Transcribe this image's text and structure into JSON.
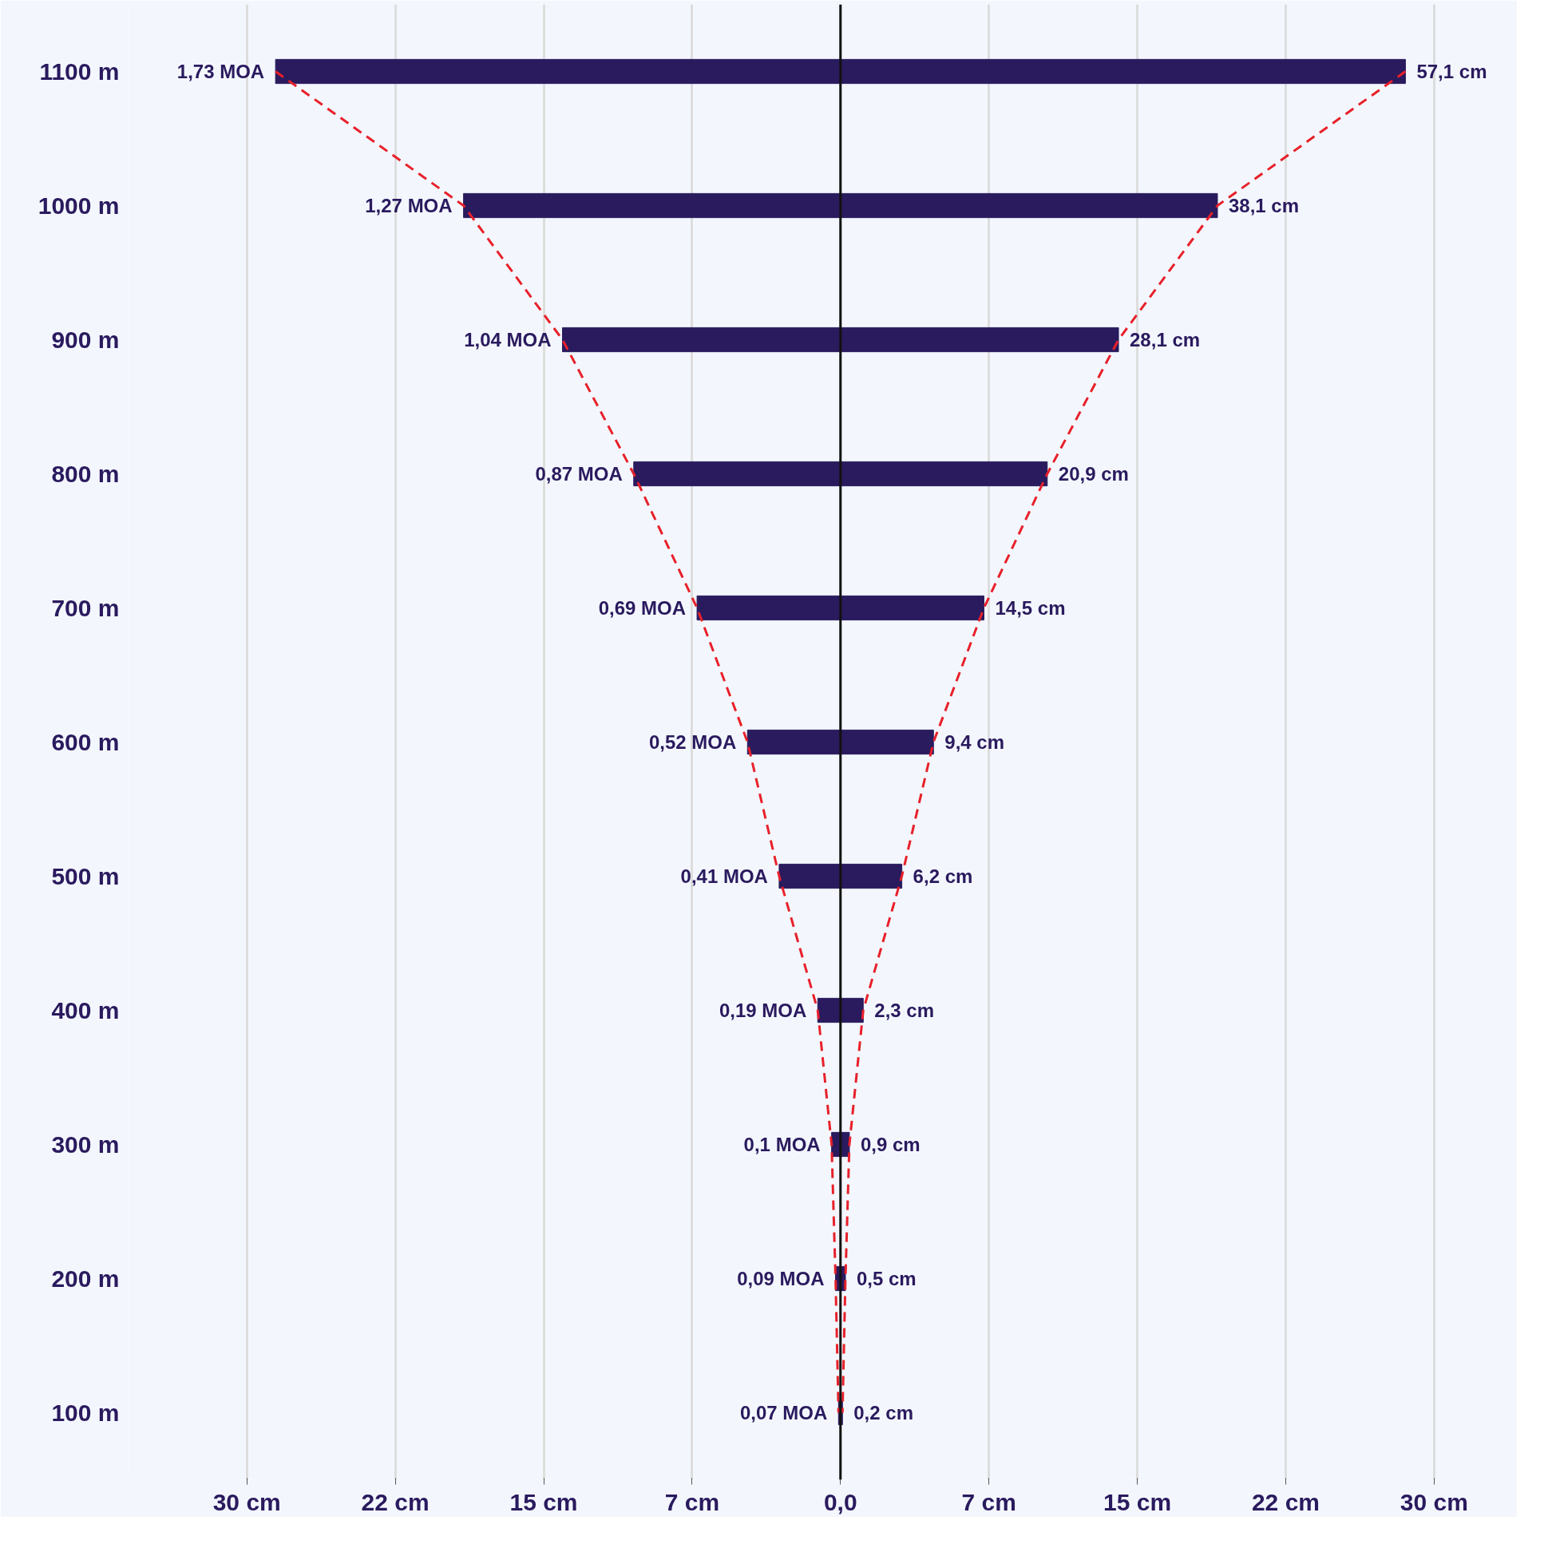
{
  "chart_data": {
    "type": "bar",
    "orientation": "horizontal",
    "categories": [
      "1100 m",
      "1000 m",
      "900 m",
      "800 m",
      "700 m",
      "600 m",
      "500 m",
      "400 m",
      "300 m",
      "200 m",
      "100 m"
    ],
    "series": [
      {
        "color": "#2a1a5e",
        "values": [
          57.1,
          38.1,
          28.1,
          20.9,
          14.5,
          9.4,
          6.2,
          2.3,
          0.9,
          0.5,
          0.2
        ],
        "base": [
          -28.55,
          -19.05,
          -14.05,
          -10.45,
          -7.25,
          -4.7,
          -3.1,
          -1.15,
          -0.45,
          -0.25,
          -0.1
        ],
        "value_labels": [
          "57,1 cm",
          "38,1 cm",
          "28,1 cm",
          "20,9 cm",
          "14,5 cm",
          "9,4 cm",
          "6,2 cm",
          "2,3 cm",
          "0,9 cm",
          "0,5 cm",
          "0,2 cm"
        ]
      },
      {
        "type": "line",
        "color": "#e8202a",
        "line_style": "dashed",
        "values": [
          -28.55,
          -19.05,
          -14.05,
          -10.45,
          -7.25,
          -4.7,
          -3.1,
          -1.15,
          -0.45,
          -0.25,
          -0.1
        ]
      },
      {
        "type": "line",
        "color": "#e8202a",
        "line_style": "dashed",
        "values": [
          28.55,
          19.05,
          14.05,
          10.45,
          7.25,
          4.7,
          3.1,
          1.15,
          0.45,
          0.25,
          0.1
        ]
      }
    ],
    "annotations": [
      {
        "text": "1,73 MOA",
        "x": -28.55,
        "y": "1100 m"
      },
      {
        "text": "1,27 MOA",
        "x": -19.05,
        "y": "1000 m"
      },
      {
        "text": "1,04 MOA",
        "x": -14.05,
        "y": "900 m"
      },
      {
        "text": "0,87 MOA",
        "x": -10.45,
        "y": "800 m"
      },
      {
        "text": "0,69 MOA",
        "x": -7.25,
        "y": "700 m"
      },
      {
        "text": "0,52 MOA",
        "x": -4.7,
        "y": "600 m"
      },
      {
        "text": "0,41 MOA",
        "x": -3.1,
        "y": "500 m"
      },
      {
        "text": "0,19 MOA",
        "x": -1.15,
        "y": "400 m"
      },
      {
        "text": "0,1 MOA",
        "x": -0.45,
        "y": "300 m"
      },
      {
        "text": "0,09 MOA",
        "x": -0.25,
        "y": "200 m"
      },
      {
        "text": "0,07 MOA",
        "x": -0.1,
        "y": "100 m"
      }
    ],
    "xlim": [
      -36,
      34
    ],
    "xticks": [
      {
        "value": -30,
        "label": "30 cm"
      },
      {
        "value": -22.5,
        "label": "22 cm"
      },
      {
        "value": -15,
        "label": "15 cm"
      },
      {
        "value": -7.5,
        "label": "7 cm"
      },
      {
        "value": 0,
        "label": "0,0"
      },
      {
        "value": 7.5,
        "label": "7 cm"
      },
      {
        "value": 15,
        "label": "15 cm"
      },
      {
        "value": 22.5,
        "label": "22 cm"
      },
      {
        "value": 30,
        "label": "30 cm"
      }
    ],
    "ref_lines": [
      {
        "axis": "x",
        "value": 0,
        "color": "#111111"
      }
    ],
    "grid": "x"
  }
}
